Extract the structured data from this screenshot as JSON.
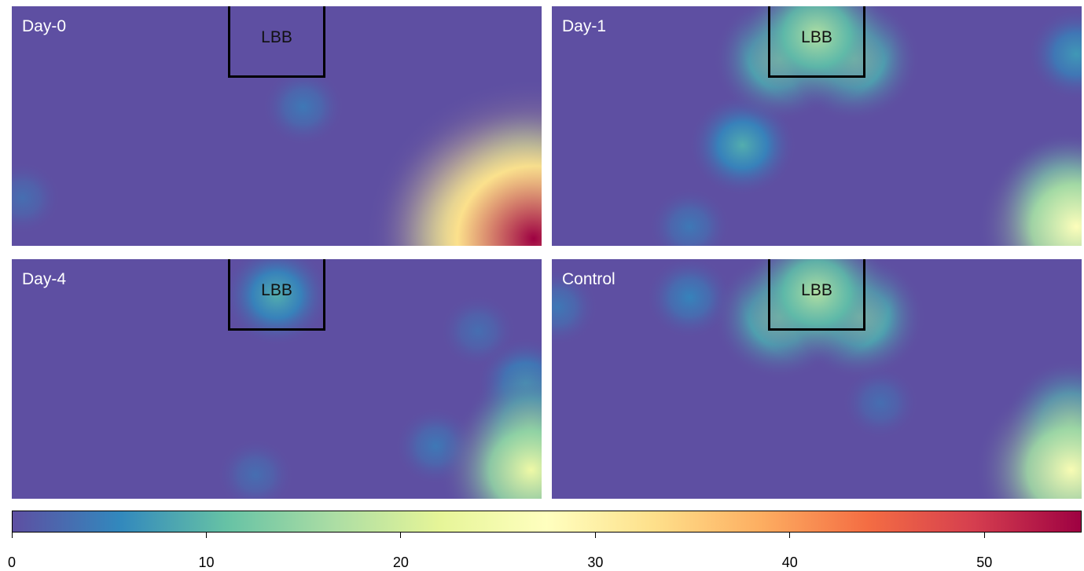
{
  "colors": {
    "scale": [
      "#5e4fa2",
      "#3288bd",
      "#66c2a5",
      "#abdda4",
      "#e6f598",
      "#ffffbf",
      "#fee08b",
      "#fdae61",
      "#f46d43",
      "#d53e4f",
      "#9e0142"
    ],
    "box": "#000000",
    "panel_label": "#ffffff"
  },
  "chart_data": {
    "type": "heatmap",
    "title": "",
    "colorbar": {
      "range": [
        0,
        55
      ],
      "ticks": [
        "0",
        "10",
        "20",
        "30",
        "40",
        "50"
      ],
      "tick_values": [
        0,
        10,
        20,
        30,
        40,
        50
      ]
    },
    "panels": [
      {
        "label": "Day-0",
        "box_label": "LBB",
        "background": 0,
        "hotspots": [
          {
            "x": 0.55,
            "y": 0.42,
            "value": 4
          },
          {
            "x": 0.02,
            "y": 0.8,
            "value": 3
          },
          {
            "x": 0.93,
            "y": 0.93,
            "value": 38
          },
          {
            "x": 0.985,
            "y": 0.97,
            "value": 55
          },
          {
            "x": 0.88,
            "y": 0.98,
            "value": 20
          },
          {
            "x": 0.97,
            "y": 0.72,
            "value": 18
          }
        ]
      },
      {
        "label": "Day-1",
        "box_label": "LBB",
        "background": 0,
        "hotspots": [
          {
            "x": 0.5,
            "y": 0.12,
            "value": 17
          },
          {
            "x": 0.43,
            "y": 0.22,
            "value": 14
          },
          {
            "x": 0.57,
            "y": 0.22,
            "value": 14
          },
          {
            "x": 0.36,
            "y": 0.58,
            "value": 9
          },
          {
            "x": 0.99,
            "y": 0.2,
            "value": 7
          },
          {
            "x": 0.26,
            "y": 0.92,
            "value": 4
          },
          {
            "x": 0.99,
            "y": 0.92,
            "value": 27
          },
          {
            "x": 0.97,
            "y": 0.8,
            "value": 15
          }
        ]
      },
      {
        "label": "Day-4",
        "box_label": "LBB",
        "background": 0,
        "hotspots": [
          {
            "x": 0.5,
            "y": 0.15,
            "value": 9
          },
          {
            "x": 0.88,
            "y": 0.3,
            "value": 3
          },
          {
            "x": 0.97,
            "y": 0.52,
            "value": 7
          },
          {
            "x": 0.98,
            "y": 0.88,
            "value": 24
          },
          {
            "x": 0.98,
            "y": 0.7,
            "value": 14
          },
          {
            "x": 0.8,
            "y": 0.78,
            "value": 4
          },
          {
            "x": 0.46,
            "y": 0.9,
            "value": 3
          }
        ]
      },
      {
        "label": "Control",
        "box_label": "LBB",
        "background": 0,
        "hotspots": [
          {
            "x": 0.5,
            "y": 0.14,
            "value": 17
          },
          {
            "x": 0.43,
            "y": 0.24,
            "value": 14
          },
          {
            "x": 0.58,
            "y": 0.24,
            "value": 14
          },
          {
            "x": 0.26,
            "y": 0.16,
            "value": 5
          },
          {
            "x": 0.01,
            "y": 0.2,
            "value": 4
          },
          {
            "x": 0.98,
            "y": 0.88,
            "value": 26
          },
          {
            "x": 0.98,
            "y": 0.68,
            "value": 14
          },
          {
            "x": 0.62,
            "y": 0.6,
            "value": 3
          }
        ]
      }
    ]
  }
}
